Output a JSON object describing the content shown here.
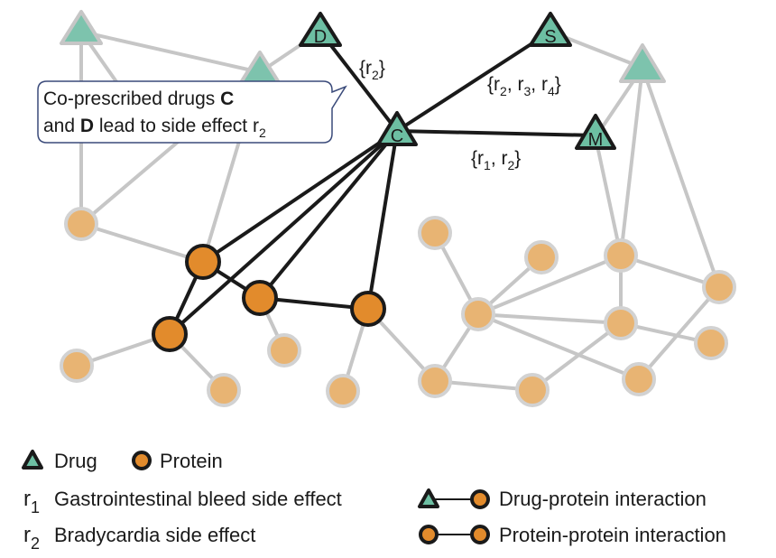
{
  "callout": {
    "line1_prefix": "Co-prescribed drugs ",
    "line1_bold": "C",
    "line2_bold": "D",
    "line2_text": " and ",
    "line2_suffix": " lead to side effect r",
    "line2_sub": "2"
  },
  "edge_labels": {
    "cd": {
      "open": "{r",
      "sub1": "2",
      "close": "}"
    },
    "cs": {
      "open": "{r",
      "sub1": "2",
      "mid1": ", r",
      "sub2": "3",
      "mid2": ", r",
      "sub3": "4",
      "close": "}"
    },
    "cm": {
      "open": "{r",
      "sub1": "1",
      "mid1": ", r",
      "sub2": "2",
      "close": "}"
    }
  },
  "drugs": {
    "c": "C",
    "d": "D",
    "s": "S",
    "m": "M"
  },
  "legend": {
    "drug": "Drug",
    "protein": "Protein",
    "r1_symbol": "r",
    "r1_sub": "1",
    "r1_text": "Gastrointestinal bleed side effect",
    "r2_symbol": "r",
    "r2_sub": "2",
    "r2_text": "Bradycardia side effect",
    "drug_protein": "Drug-protein interaction",
    "protein_protein": "Protein-protein interaction"
  },
  "colors": {
    "drug": "#6dbfa3",
    "protein": "#e28b2c",
    "faded_protein": "#e8b473",
    "faded_edge": "#c6c6c6",
    "active_edge": "#1a1a1a"
  }
}
